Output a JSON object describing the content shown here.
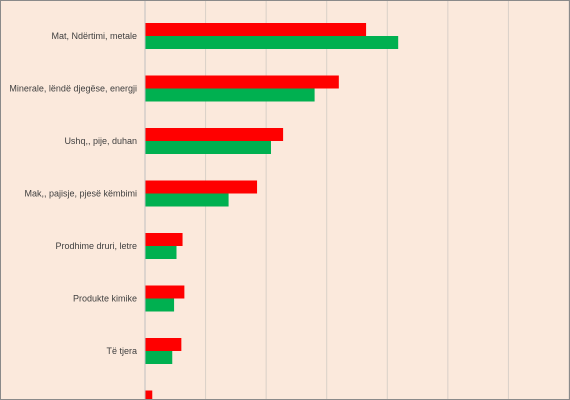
{
  "colors": {
    "background": "#fbe9dc",
    "series_red": "#ff0000",
    "series_green": "#00b050",
    "gridline": "#d9d0c8"
  },
  "chart_data": {
    "type": "bar",
    "orientation": "horizontal",
    "title": "",
    "xlabel": "",
    "ylabel": "",
    "categories": [
      "Mat, Ndërtimi, metale",
      "Minerale, lëndë djegëse, energji",
      "Ushq,, pije, duhan",
      "Mak,, pajisje, pjesë këmbimi",
      "Prodhime druri, letre",
      "Produkte kimike",
      "Të tjera",
      ""
    ],
    "series": [
      {
        "values": [
          36.5,
          32.0,
          22.8,
          18.5,
          6.2,
          6.5,
          6.0,
          1.2
        ]
      },
      {
        "values": [
          41.8,
          28.0,
          20.8,
          13.8,
          5.2,
          4.8,
          4.5,
          null
        ]
      }
    ],
    "xlim": [
      0,
      70
    ],
    "grid": true,
    "legend": "none"
  }
}
